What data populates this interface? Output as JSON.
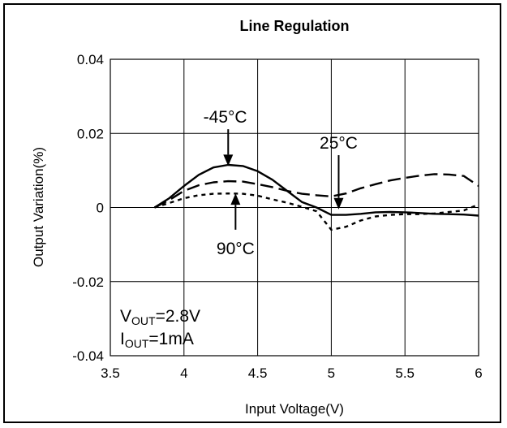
{
  "chart_data": {
    "type": "line",
    "title": "Line Regulation",
    "xlabel": "Input Voltage(V)",
    "ylabel": "Output Variation(%)",
    "xlim": [
      3.5,
      6
    ],
    "ylim": [
      -0.04,
      0.04
    ],
    "x_ticks": [
      3.5,
      4,
      4.5,
      5,
      5.5,
      6
    ],
    "x_tick_labels": [
      "3.5",
      "4",
      "4.5",
      "5",
      "5.5",
      "6"
    ],
    "y_ticks": [
      0.04,
      0.02,
      0,
      -0.02,
      -0.04
    ],
    "y_tick_labels": [
      "0.04",
      "0.02",
      "0",
      "-0.02",
      "-0.04"
    ],
    "grid": true,
    "series": [
      {
        "name": "-45°C",
        "style": "solid",
        "x": [
          3.8,
          3.9,
          4.0,
          4.1,
          4.2,
          4.3,
          4.4,
          4.5,
          4.6,
          4.7,
          4.8,
          4.9,
          5.0,
          5.1,
          5.2,
          5.3,
          5.4,
          5.5,
          5.6,
          5.7,
          5.8,
          5.9,
          6.0
        ],
        "values": [
          0.0,
          0.0025,
          0.0058,
          0.0088,
          0.0108,
          0.0115,
          0.0112,
          0.0098,
          0.0075,
          0.0045,
          0.0015,
          0.0,
          -0.002,
          -0.002,
          -0.0017,
          -0.0013,
          -0.0012,
          -0.0013,
          -0.0015,
          -0.0017,
          -0.0018,
          -0.0019,
          -0.0022
        ]
      },
      {
        "name": "25°C",
        "style": "long-dash",
        "x": [
          3.8,
          3.9,
          4.0,
          4.1,
          4.2,
          4.3,
          4.4,
          4.5,
          4.6,
          4.7,
          4.8,
          4.9,
          5.0,
          5.1,
          5.2,
          5.3,
          5.4,
          5.5,
          5.6,
          5.7,
          5.8,
          5.9,
          6.0
        ],
        "values": [
          0.0,
          0.002,
          0.0045,
          0.006,
          0.0068,
          0.0071,
          0.007,
          0.0063,
          0.0055,
          0.0045,
          0.0037,
          0.0033,
          0.003,
          0.0038,
          0.0052,
          0.0063,
          0.0073,
          0.008,
          0.0086,
          0.009,
          0.0089,
          0.0085,
          0.0058
        ]
      },
      {
        "name": "90°C",
        "style": "short-dash",
        "x": [
          3.8,
          3.9,
          4.0,
          4.1,
          4.2,
          4.3,
          4.4,
          4.5,
          4.6,
          4.7,
          4.8,
          4.9,
          5.0,
          5.1,
          5.2,
          5.3,
          5.4,
          5.5,
          5.6,
          5.7,
          5.8,
          5.9,
          6.0
        ],
        "values": [
          0.0,
          0.0012,
          0.0025,
          0.0033,
          0.0037,
          0.0038,
          0.0037,
          0.0032,
          0.0022,
          0.0013,
          0.0002,
          -0.001,
          -0.006,
          -0.0052,
          -0.0035,
          -0.0024,
          -0.002,
          -0.0018,
          -0.0018,
          -0.0016,
          -0.0012,
          -0.0008,
          0.0008
        ]
      }
    ],
    "annotations": [
      {
        "text": "-45°C",
        "arrow_to": [
          4.3,
          0.0112
        ],
        "text_at": [
          4.28,
          0.022
        ]
      },
      {
        "text": "25°C",
        "arrow_to": [
          5.05,
          -0.0005
        ],
        "text_at": [
          5.05,
          0.015
        ]
      },
      {
        "text": "90°C",
        "arrow_to": [
          4.35,
          0.0038
        ],
        "text_at": [
          4.35,
          -0.0095
        ]
      }
    ],
    "conditions": [
      {
        "main": "V",
        "sub": "OUT",
        "rest": "=2.8V"
      },
      {
        "main": "I",
        "sub": "OUT",
        "rest": "=1mA"
      }
    ]
  }
}
